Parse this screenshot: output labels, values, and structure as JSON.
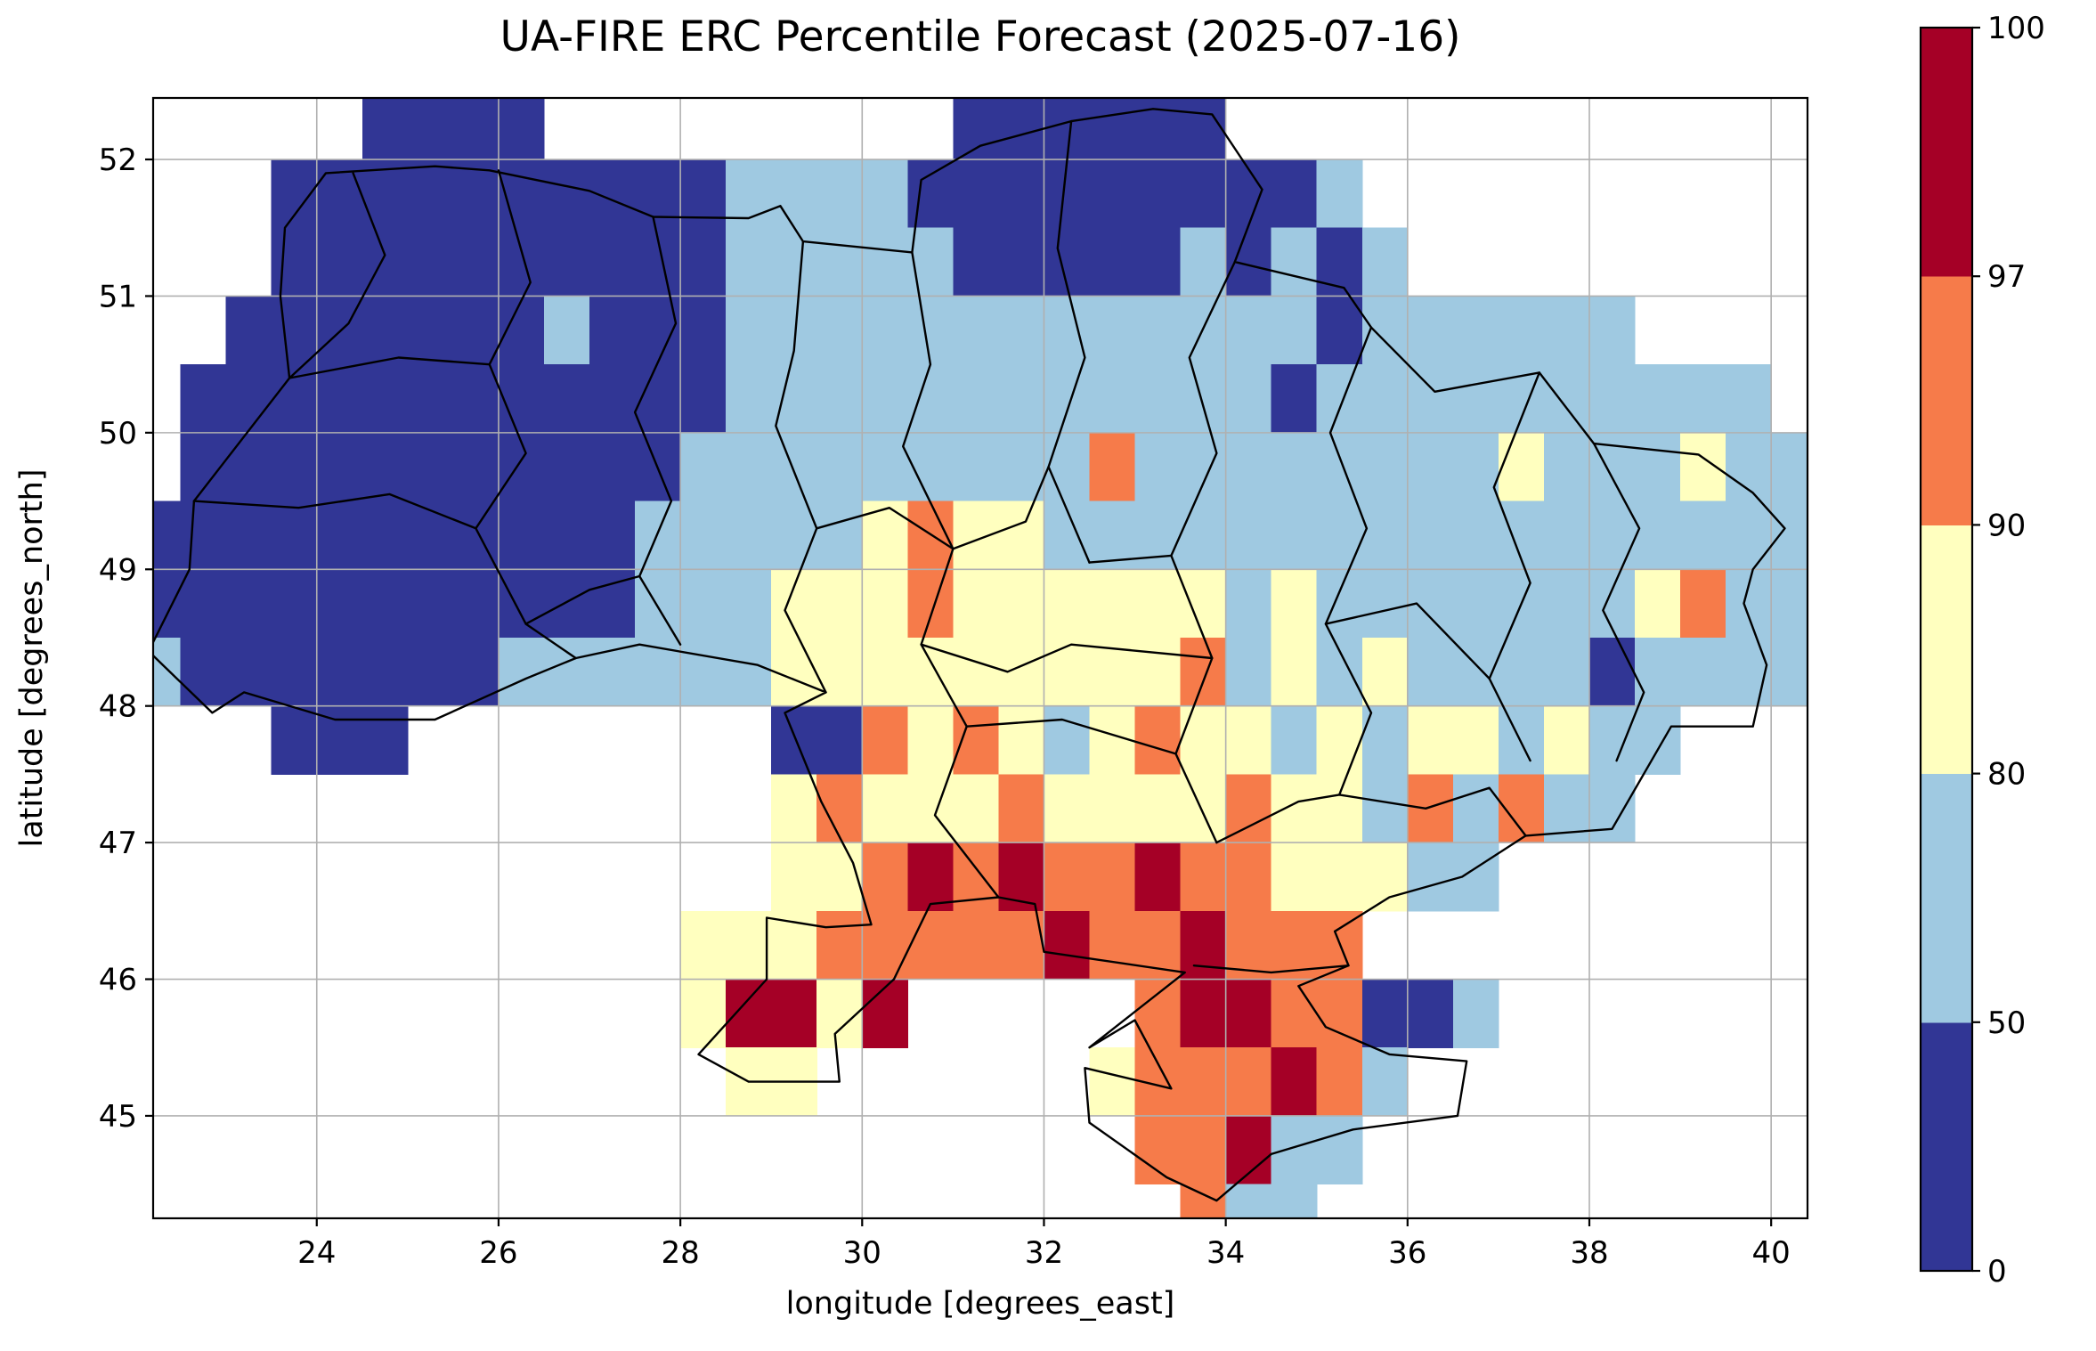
{
  "chart_data": {
    "type": "heatmap",
    "title": "UA-FIRE ERC Percentile Forecast (2025-07-16)",
    "xlabel": "longitude [degrees_east]",
    "ylabel": "latitude [degrees_north]",
    "xlim": [
      22.2,
      40.4
    ],
    "ylim": [
      44.25,
      52.45
    ],
    "xticks": [
      24,
      26,
      28,
      30,
      32,
      34,
      36,
      38,
      40
    ],
    "yticks": [
      45,
      46,
      47,
      48,
      49,
      50,
      51,
      52
    ],
    "grid": true,
    "grid_color": "#b0b0b0",
    "colorbar": {
      "boundaries": [
        0,
        50,
        80,
        90,
        97,
        100
      ],
      "colors": [
        "#313695",
        "#9fc9e1",
        "#ffffbf",
        "#f67b4a",
        "#a50026"
      ],
      "spacing": "uniform"
    },
    "grid_def": {
      "lon0": 22.0,
      "lat0": 52.5,
      "cell": 0.5,
      "ncols": 37,
      "nrows": 17,
      "legend": "rows listed top-to-bottom starting at lat 52.5; chars: .=no data, 1=percentile 0-50, 2=50-80, 3=80-90, 4=90-97, 5=97-100"
    },
    "rows": [
      ".....1111.........111111.............",
      "...111111111122221111111112..........",
      "...1111111111222221111121212.........",
      "..1111111211122222222222221222222....",
      ".11111111111122222222222212222222222.",
      ".111111111112222222224222222223222322",
      "1111111111122222343322222222222222222",
      "1111111111122233343333332322222223422",
      "2111111122222233333333342323222212222",
      "...111........11434323433232332322...",
      "..............3433343333433242422....",
      "..............3345454454433322.......",
      "............333444445445444..........",
      "............35535.....45544112.......",
      ".............33......3444542.........",
      "......................44522..........",
      ".......................422..........."
    ],
    "borders": {
      "outline": [
        [
          22.15,
          48.4
        ],
        [
          22.6,
          49.0
        ],
        [
          22.65,
          49.5
        ],
        [
          23.7,
          50.4
        ],
        [
          23.6,
          51.0
        ],
        [
          23.65,
          51.5
        ],
        [
          24.1,
          51.9
        ],
        [
          25.3,
          51.95
        ],
        [
          25.9,
          51.92
        ],
        [
          27.0,
          51.77
        ],
        [
          27.7,
          51.58
        ],
        [
          28.75,
          51.57
        ],
        [
          29.1,
          51.66
        ],
        [
          29.35,
          51.4
        ],
        [
          30.55,
          51.32
        ],
        [
          30.65,
          51.85
        ],
        [
          31.3,
          52.1
        ],
        [
          32.3,
          52.28
        ],
        [
          33.2,
          52.37
        ],
        [
          33.85,
          52.33
        ],
        [
          34.4,
          51.78
        ],
        [
          34.1,
          51.25
        ],
        [
          35.3,
          51.06
        ],
        [
          35.6,
          50.77
        ],
        [
          36.3,
          50.3
        ],
        [
          37.45,
          50.44
        ],
        [
          38.05,
          49.92
        ],
        [
          39.2,
          49.84
        ],
        [
          39.8,
          49.56
        ],
        [
          40.15,
          49.3
        ],
        [
          39.8,
          49.0
        ],
        [
          39.7,
          48.75
        ],
        [
          39.95,
          48.3
        ],
        [
          39.8,
          47.85
        ],
        [
          38.9,
          47.85
        ],
        [
          38.25,
          47.1
        ],
        [
          37.3,
          47.05
        ],
        [
          36.6,
          46.75
        ],
        [
          35.8,
          46.6
        ],
        [
          35.2,
          46.35
        ],
        [
          35.35,
          46.1
        ],
        [
          34.8,
          45.95
        ],
        [
          35.1,
          45.65
        ],
        [
          35.8,
          45.45
        ],
        [
          36.65,
          45.4
        ],
        [
          36.55,
          45.0
        ],
        [
          35.4,
          44.9
        ],
        [
          34.5,
          44.72
        ],
        [
          33.9,
          44.38
        ],
        [
          33.35,
          44.55
        ],
        [
          32.5,
          44.95
        ],
        [
          32.45,
          45.35
        ],
        [
          33.4,
          45.2
        ],
        [
          33.0,
          45.7
        ],
        [
          32.5,
          45.5
        ],
        [
          33.55,
          46.05
        ],
        [
          32.0,
          46.2
        ],
        [
          31.9,
          46.55
        ],
        [
          31.5,
          46.6
        ],
        [
          30.75,
          46.55
        ],
        [
          30.35,
          46.0
        ],
        [
          29.7,
          45.6
        ],
        [
          29.75,
          45.25
        ],
        [
          28.75,
          45.25
        ],
        [
          28.2,
          45.45
        ],
        [
          28.95,
          46.0
        ],
        [
          28.95,
          46.45
        ],
        [
          29.6,
          46.38
        ],
        [
          30.1,
          46.4
        ],
        [
          29.9,
          46.85
        ],
        [
          29.55,
          47.3
        ],
        [
          29.15,
          47.95
        ],
        [
          29.6,
          48.1
        ],
        [
          28.85,
          48.3
        ],
        [
          27.55,
          48.45
        ],
        [
          26.85,
          48.35
        ],
        [
          26.3,
          48.2
        ],
        [
          25.3,
          47.9
        ],
        [
          24.2,
          47.9
        ],
        [
          23.2,
          48.1
        ],
        [
          22.85,
          47.95
        ]
      ],
      "internal": [
        [
          [
            24.4,
            51.9
          ],
          [
            24.75,
            51.3
          ],
          [
            24.35,
            50.8
          ],
          [
            23.7,
            50.4
          ]
        ],
        [
          [
            26.0,
            51.92
          ],
          [
            26.35,
            51.1
          ],
          [
            25.9,
            50.5
          ],
          [
            26.3,
            49.85
          ],
          [
            25.75,
            49.3
          ],
          [
            26.3,
            48.6
          ],
          [
            26.85,
            48.35
          ]
        ],
        [
          [
            27.7,
            51.58
          ],
          [
            27.95,
            50.8
          ],
          [
            27.5,
            50.15
          ],
          [
            27.9,
            49.5
          ],
          [
            27.55,
            48.95
          ],
          [
            28.0,
            48.45
          ]
        ],
        [
          [
            29.35,
            51.4
          ],
          [
            29.25,
            50.6
          ],
          [
            29.05,
            50.05
          ],
          [
            29.5,
            49.3
          ],
          [
            29.15,
            48.7
          ],
          [
            29.6,
            48.1
          ]
        ],
        [
          [
            30.55,
            51.32
          ],
          [
            30.75,
            50.5
          ],
          [
            30.45,
            49.9
          ],
          [
            31.0,
            49.15
          ],
          [
            30.65,
            48.45
          ],
          [
            31.15,
            47.85
          ],
          [
            30.8,
            47.2
          ],
          [
            31.5,
            46.6
          ]
        ],
        [
          [
            32.3,
            52.28
          ],
          [
            32.15,
            51.35
          ],
          [
            32.45,
            50.55
          ],
          [
            32.05,
            49.75
          ],
          [
            32.5,
            49.05
          ]
        ],
        [
          [
            34.1,
            51.25
          ],
          [
            33.6,
            50.55
          ],
          [
            33.9,
            49.85
          ],
          [
            33.4,
            49.1
          ],
          [
            33.85,
            48.35
          ],
          [
            33.45,
            47.65
          ],
          [
            33.9,
            47.0
          ]
        ],
        [
          [
            35.6,
            50.77
          ],
          [
            35.15,
            50.0
          ],
          [
            35.55,
            49.3
          ],
          [
            35.1,
            48.6
          ],
          [
            35.6,
            47.95
          ],
          [
            35.25,
            47.35
          ]
        ],
        [
          [
            37.45,
            50.44
          ],
          [
            36.95,
            49.6
          ],
          [
            37.35,
            48.9
          ],
          [
            36.9,
            48.2
          ],
          [
            37.35,
            47.6
          ]
        ],
        [
          [
            38.05,
            49.92
          ],
          [
            38.55,
            49.3
          ],
          [
            38.15,
            48.7
          ],
          [
            38.6,
            48.1
          ],
          [
            38.3,
            47.6
          ]
        ],
        [
          [
            23.7,
            50.4
          ],
          [
            24.9,
            50.55
          ],
          [
            25.9,
            50.5
          ]
        ],
        [
          [
            22.65,
            49.5
          ],
          [
            23.8,
            49.45
          ],
          [
            24.8,
            49.55
          ],
          [
            25.75,
            49.3
          ]
        ],
        [
          [
            26.3,
            48.6
          ],
          [
            27.0,
            48.85
          ],
          [
            27.55,
            48.95
          ]
        ],
        [
          [
            29.5,
            49.3
          ],
          [
            30.3,
            49.45
          ],
          [
            31.0,
            49.15
          ],
          [
            31.8,
            49.35
          ],
          [
            32.05,
            49.75
          ]
        ],
        [
          [
            32.5,
            49.05
          ],
          [
            33.4,
            49.1
          ]
        ],
        [
          [
            30.65,
            48.45
          ],
          [
            31.6,
            48.25
          ],
          [
            32.3,
            48.45
          ],
          [
            33.85,
            48.35
          ]
        ],
        [
          [
            31.15,
            47.85
          ],
          [
            32.2,
            47.9
          ],
          [
            33.45,
            47.65
          ]
        ],
        [
          [
            33.9,
            47.0
          ],
          [
            34.8,
            47.3
          ],
          [
            35.25,
            47.35
          ],
          [
            36.2,
            47.25
          ],
          [
            36.9,
            47.4
          ],
          [
            37.3,
            47.05
          ]
        ],
        [
          [
            35.1,
            48.6
          ],
          [
            36.1,
            48.75
          ],
          [
            36.9,
            48.2
          ]
        ],
        [
          [
            33.65,
            46.1
          ],
          [
            34.5,
            46.05
          ],
          [
            35.35,
            46.1
          ]
        ]
      ]
    }
  }
}
